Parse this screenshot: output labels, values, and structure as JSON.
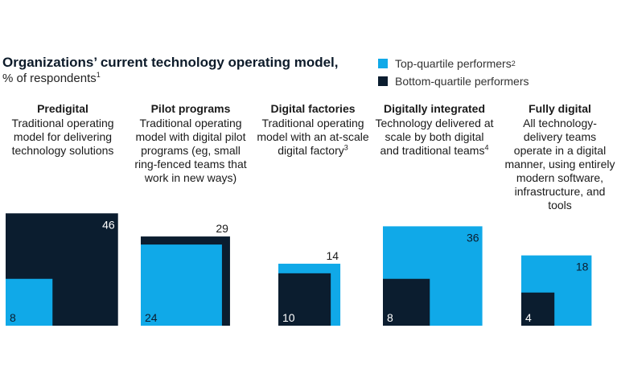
{
  "title": "Organizations’ current technology operating model,",
  "subtitle": "% of respondents",
  "subtitle_note": "1",
  "legend": [
    {
      "label": "Top-quartile performers",
      "note": "2",
      "color": "#10a9e8"
    },
    {
      "label": "Bottom-quartile performers",
      "note": "",
      "color": "#0b1d2f"
    }
  ],
  "columns": [
    {
      "title": "Predigital",
      "description": "Traditional operating model for delivering technology solutions",
      "note": ""
    },
    {
      "title": "Pilot programs",
      "description": "Traditional operating model with digital pilot programs (eg, small ring-fenced teams that work in new ways)",
      "note": ""
    },
    {
      "title": "Digital factories",
      "description": "Traditional operating model with an at-scale digital factory",
      "note": "3"
    },
    {
      "title": "Digitally integrated",
      "description": "Technology delivered at scale by both digital and traditional teams",
      "note": "4"
    },
    {
      "title": "Fully digital",
      "description": "All technology-delivery teams operate in a digital manner, using entirely modern software, infrastructure, and tools",
      "note": ""
    }
  ],
  "chart_data": {
    "type": "area",
    "categories": [
      "Predigital",
      "Pilot programs",
      "Digital factories",
      "Digitally integrated",
      "Fully digital"
    ],
    "series": [
      {
        "name": "Top-quartile performers",
        "values": [
          8,
          24,
          14,
          36,
          18
        ],
        "color": "#10a9e8"
      },
      {
        "name": "Bottom-quartile performers",
        "values": [
          46,
          29,
          10,
          8,
          4
        ],
        "color": "#0b1d2f"
      }
    ]
  }
}
